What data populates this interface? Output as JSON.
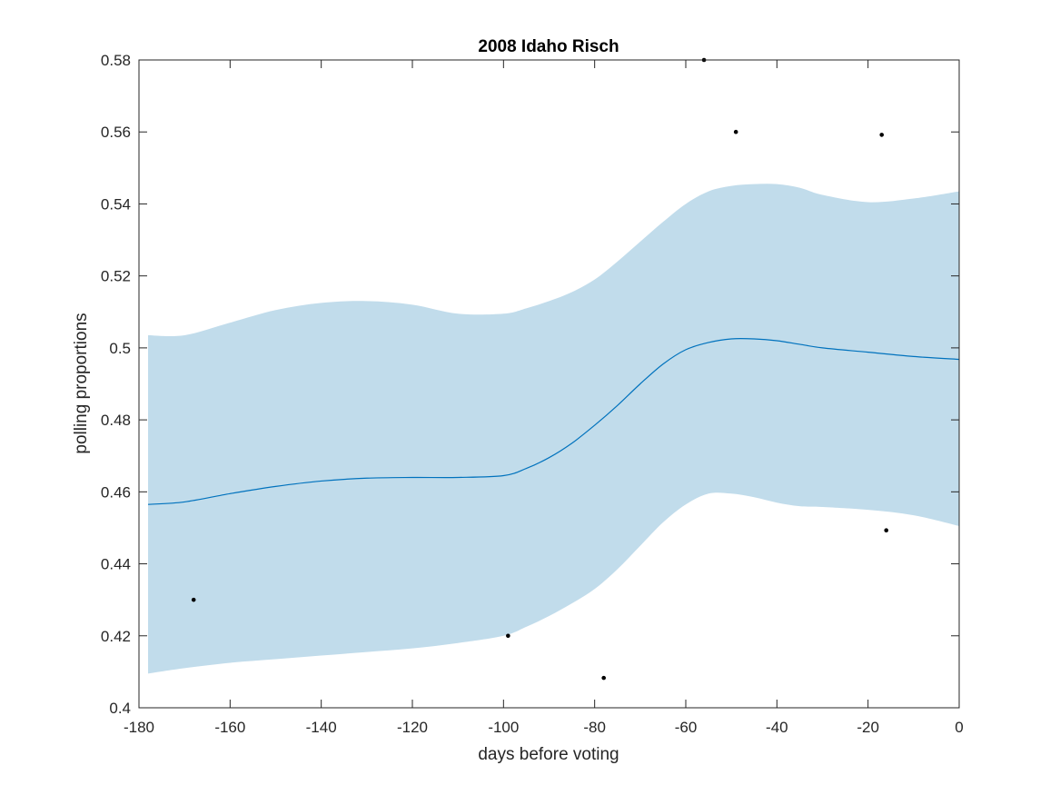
{
  "chart_data": {
    "type": "line",
    "title": "2008 Idaho Risch",
    "xlabel": "days before voting",
    "ylabel": "polling proportions",
    "xlim": [
      -180,
      0
    ],
    "ylim": [
      0.4,
      0.58
    ],
    "xticks": [
      -180,
      -160,
      -140,
      -120,
      -100,
      -80,
      -60,
      -40,
      -20,
      0
    ],
    "yticks": [
      0.4,
      0.42,
      0.44,
      0.46,
      0.48,
      0.5,
      0.52,
      0.54,
      0.56,
      0.58
    ],
    "xtick_labels": [
      "-180",
      "-160",
      "-140",
      "-120",
      "-100",
      "-80",
      "-60",
      "-40",
      "-20",
      "0"
    ],
    "ytick_labels": [
      "0.4",
      "0.42",
      "0.44",
      "0.46",
      "0.48",
      "0.5",
      "0.52",
      "0.54",
      "0.56",
      "0.58"
    ],
    "grid": false,
    "colors": {
      "band": "#c1dceb",
      "line": "#0072bd",
      "points": "#000000",
      "axes": "#262626"
    },
    "series": [
      {
        "kind": "line",
        "x": [
          -178,
          -170,
          -160,
          -150,
          -140,
          -130,
          -120,
          -110,
          -100,
          -95,
          -90,
          -85,
          -80,
          -75,
          -70,
          -65,
          -60,
          -55,
          -50,
          -45,
          -40,
          -35,
          -30,
          -20,
          -10,
          0
        ],
        "values": [
          0.4565,
          0.4572,
          0.4595,
          0.4615,
          0.463,
          0.4638,
          0.464,
          0.464,
          0.4645,
          0.4665,
          0.4695,
          0.4735,
          0.4785,
          0.484,
          0.49,
          0.4955,
          0.4995,
          0.5015,
          0.5025,
          0.5025,
          0.502,
          0.501,
          0.5,
          0.4988,
          0.4976,
          0.4968
        ]
      },
      {
        "kind": "band",
        "x": [
          -178,
          -170,
          -160,
          -150,
          -140,
          -130,
          -120,
          -110,
          -100,
          -95,
          -90,
          -85,
          -80,
          -75,
          -70,
          -65,
          -60,
          -55,
          -50,
          -45,
          -40,
          -35,
          -30,
          -20,
          -10,
          0
        ],
        "upper": [
          0.5035,
          0.5035,
          0.507,
          0.5105,
          0.5125,
          0.513,
          0.512,
          0.5095,
          0.5095,
          0.511,
          0.513,
          0.5155,
          0.519,
          0.524,
          0.5295,
          0.535,
          0.54,
          0.5435,
          0.545,
          0.5455,
          0.5455,
          0.5445,
          0.5425,
          0.5405,
          0.5415,
          0.5435
        ],
        "lower": [
          0.4095,
          0.411,
          0.4125,
          0.4135,
          0.4145,
          0.4155,
          0.4165,
          0.418,
          0.42,
          0.4225,
          0.4255,
          0.429,
          0.433,
          0.4385,
          0.445,
          0.4515,
          0.4565,
          0.4595,
          0.4595,
          0.4585,
          0.457,
          0.456,
          0.4558,
          0.455,
          0.4535,
          0.4505
        ]
      },
      {
        "kind": "scatter",
        "x": [
          -168,
          -99,
          -78,
          -56,
          -49,
          -17,
          -16
        ],
        "values": [
          0.43,
          0.42,
          0.4083,
          0.58,
          0.56,
          0.5592,
          0.4493
        ]
      }
    ]
  }
}
